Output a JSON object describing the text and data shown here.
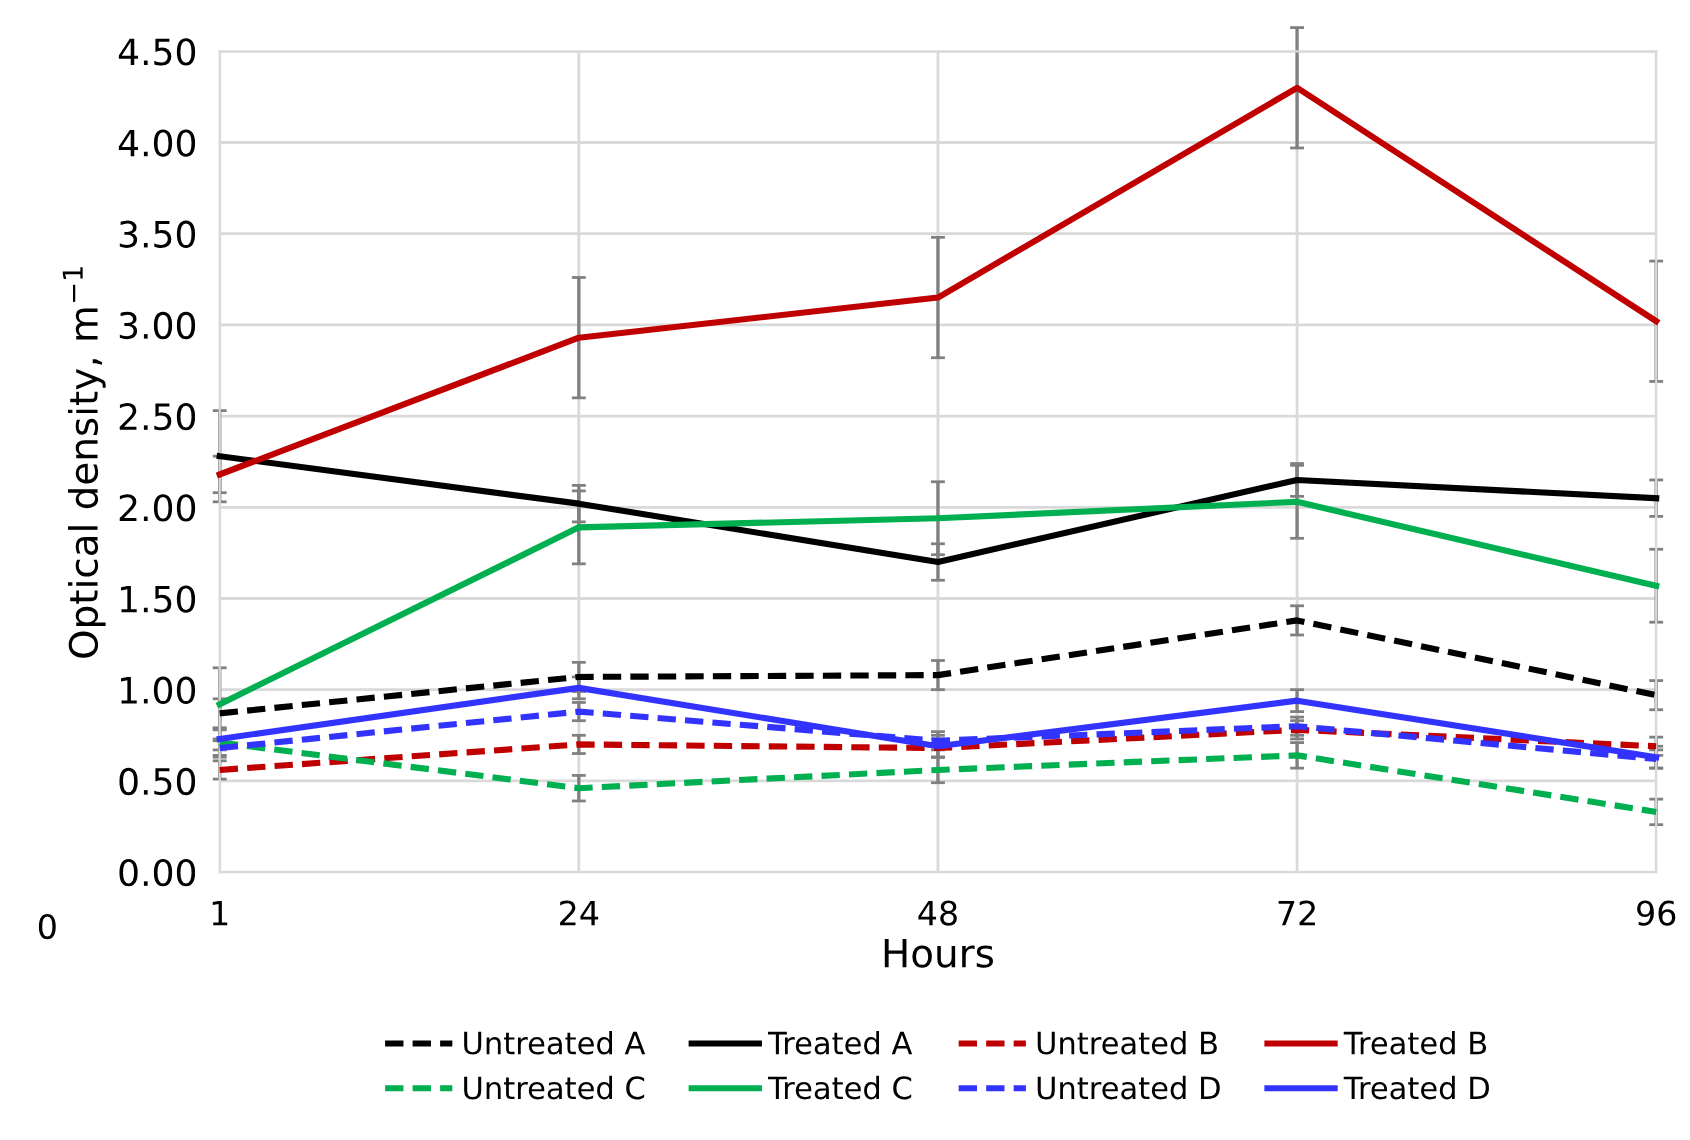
{
  "chart_data": {
    "type": "line",
    "xlabel": "Hours",
    "ylabel": "Optical density, m$^{−1}$",
    "categories": [
      "1",
      "24",
      "48",
      "72",
      "96"
    ],
    "ylim": [
      0,
      4.5
    ],
    "yticks": [
      {
        "value": 0,
        "label": "0.00"
      },
      {
        "value": 0.5,
        "label": "0.50"
      },
      {
        "value": 1,
        "label": "1.00"
      },
      {
        "value": 1.5,
        "label": "1.50"
      },
      {
        "value": 2,
        "label": "2.00"
      },
      {
        "value": 2.5,
        "label": "2.50"
      },
      {
        "value": 3,
        "label": "3.00"
      },
      {
        "value": 3.5,
        "label": "3.50"
      },
      {
        "value": 4,
        "label": "4.00"
      },
      {
        "value": 4.5,
        "label": "4.50"
      }
    ],
    "grid": true,
    "legend": "bottom",
    "marker": "none",
    "annotations": [
      "0"
    ],
    "series": [
      {
        "name": "Untreated A",
        "color": "#000000",
        "line_style": "dashed",
        "values": [
          0.87,
          1.07,
          1.08,
          1.38,
          0.97
        ],
        "errors": [
          0.08,
          0.08,
          0.08,
          0.08,
          0.08
        ]
      },
      {
        "name": "Treated A",
        "color": "#000000",
        "line_style": "solid",
        "values": [
          2.28,
          2.02,
          1.7,
          2.15,
          2.05
        ],
        "errors": [
          0.25,
          0.1,
          0.1,
          0.09,
          0.1
        ]
      },
      {
        "name": "Untreated B",
        "color": "#c00000",
        "line_style": "dashed",
        "values": [
          0.56,
          0.7,
          0.68,
          0.78,
          0.69
        ],
        "errors": [
          0.05,
          0.05,
          0.05,
          0.05,
          0.05
        ]
      },
      {
        "name": "Treated B",
        "color": "#c00000",
        "line_style": "solid",
        "values": [
          2.18,
          2.93,
          3.15,
          4.3,
          3.02
        ],
        "errors": [
          0.1,
          0.33,
          0.33,
          0.33,
          0.33
        ]
      },
      {
        "name": "Untreated C",
        "color": "#00b050",
        "line_style": "dashed",
        "values": [
          0.71,
          0.46,
          0.56,
          0.64,
          0.33
        ],
        "errors": [
          0.07,
          0.07,
          0.07,
          0.07,
          0.07
        ]
      },
      {
        "name": "Treated C",
        "color": "#00b050",
        "line_style": "solid",
        "values": [
          0.92,
          1.89,
          1.94,
          2.03,
          1.57
        ],
        "errors": [
          0.2,
          0.2,
          0.2,
          0.2,
          0.2
        ]
      },
      {
        "name": "Untreated D",
        "color": "#3333ff",
        "line_style": "dashed",
        "values": [
          0.68,
          0.88,
          0.72,
          0.8,
          0.62
        ],
        "errors": [
          0.05,
          0.05,
          0.05,
          0.05,
          0.05
        ]
      },
      {
        "name": "Treated D",
        "color": "#3333ff",
        "line_style": "solid",
        "values": [
          0.73,
          1.01,
          0.69,
          0.94,
          0.63
        ],
        "errors": [
          0.06,
          0.06,
          0.06,
          0.06,
          0.06
        ]
      }
    ]
  }
}
